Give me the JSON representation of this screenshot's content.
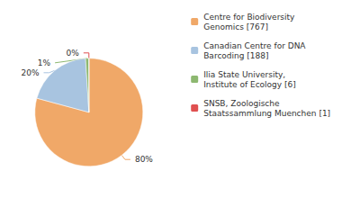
{
  "chart_data": {
    "type": "pie",
    "categories": [
      "Centre for Biodiversity\nGenomics [767]",
      "Canadian Centre for DNA\nBarcoding [188]",
      "Ilia State University,\nInstitute of Ecology [6]",
      "SNSB, Zoologische\nStaatssammlung Muenchen [1]"
    ],
    "values": [
      80,
      20,
      1,
      0
    ],
    "value_labels": [
      "80%",
      "20%",
      "1%",
      "0%"
    ],
    "colors": [
      "#f0a868",
      "#a8c4e0",
      "#8db870",
      "#e05050"
    ],
    "data_labels": true,
    "legend": "upper right"
  }
}
